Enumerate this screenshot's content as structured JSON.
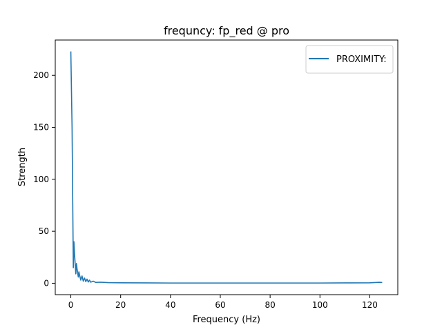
{
  "chart_data": {
    "type": "line",
    "title": "frequncy: fp_red @ pro",
    "xlabel": "Frequency (Hz)",
    "ylabel": "Strength",
    "xlim": [
      -6.25,
      131.25
    ],
    "ylim": [
      -11,
      234
    ],
    "xticks": [
      0,
      20,
      40,
      60,
      80,
      100,
      120
    ],
    "yticks": [
      0,
      50,
      100,
      150,
      200
    ],
    "grid": false,
    "legend": {
      "placement": "top-right",
      "entries": [
        "PROXIMITY:"
      ]
    },
    "series": [
      {
        "name": "PROXIMITY:",
        "color": "#1f77b4",
        "x": [
          0,
          0.5,
          1.0,
          1.25,
          1.5,
          2.0,
          2.25,
          2.5,
          3.0,
          3.25,
          3.5,
          4.0,
          4.5,
          5.0,
          5.5,
          6.0,
          6.5,
          7.0,
          7.5,
          8.0,
          9.0,
          10.0,
          12.0,
          15.0,
          20.0,
          30.0,
          40.0,
          50.0,
          60.0,
          70.0,
          80.0,
          90.0,
          100.0,
          110.0,
          120.0,
          124.0,
          125.0
        ],
        "values": [
          223,
          150,
          15,
          40,
          28,
          9,
          19,
          14,
          6,
          11,
          8,
          3,
          7,
          2,
          5,
          1.5,
          4,
          1.2,
          3,
          1,
          2,
          0.8,
          1,
          0.6,
          0.4,
          0.3,
          0.2,
          0.2,
          0.2,
          0.2,
          0.2,
          0.2,
          0.2,
          0.3,
          0.4,
          0.9,
          0.7
        ]
      }
    ]
  }
}
